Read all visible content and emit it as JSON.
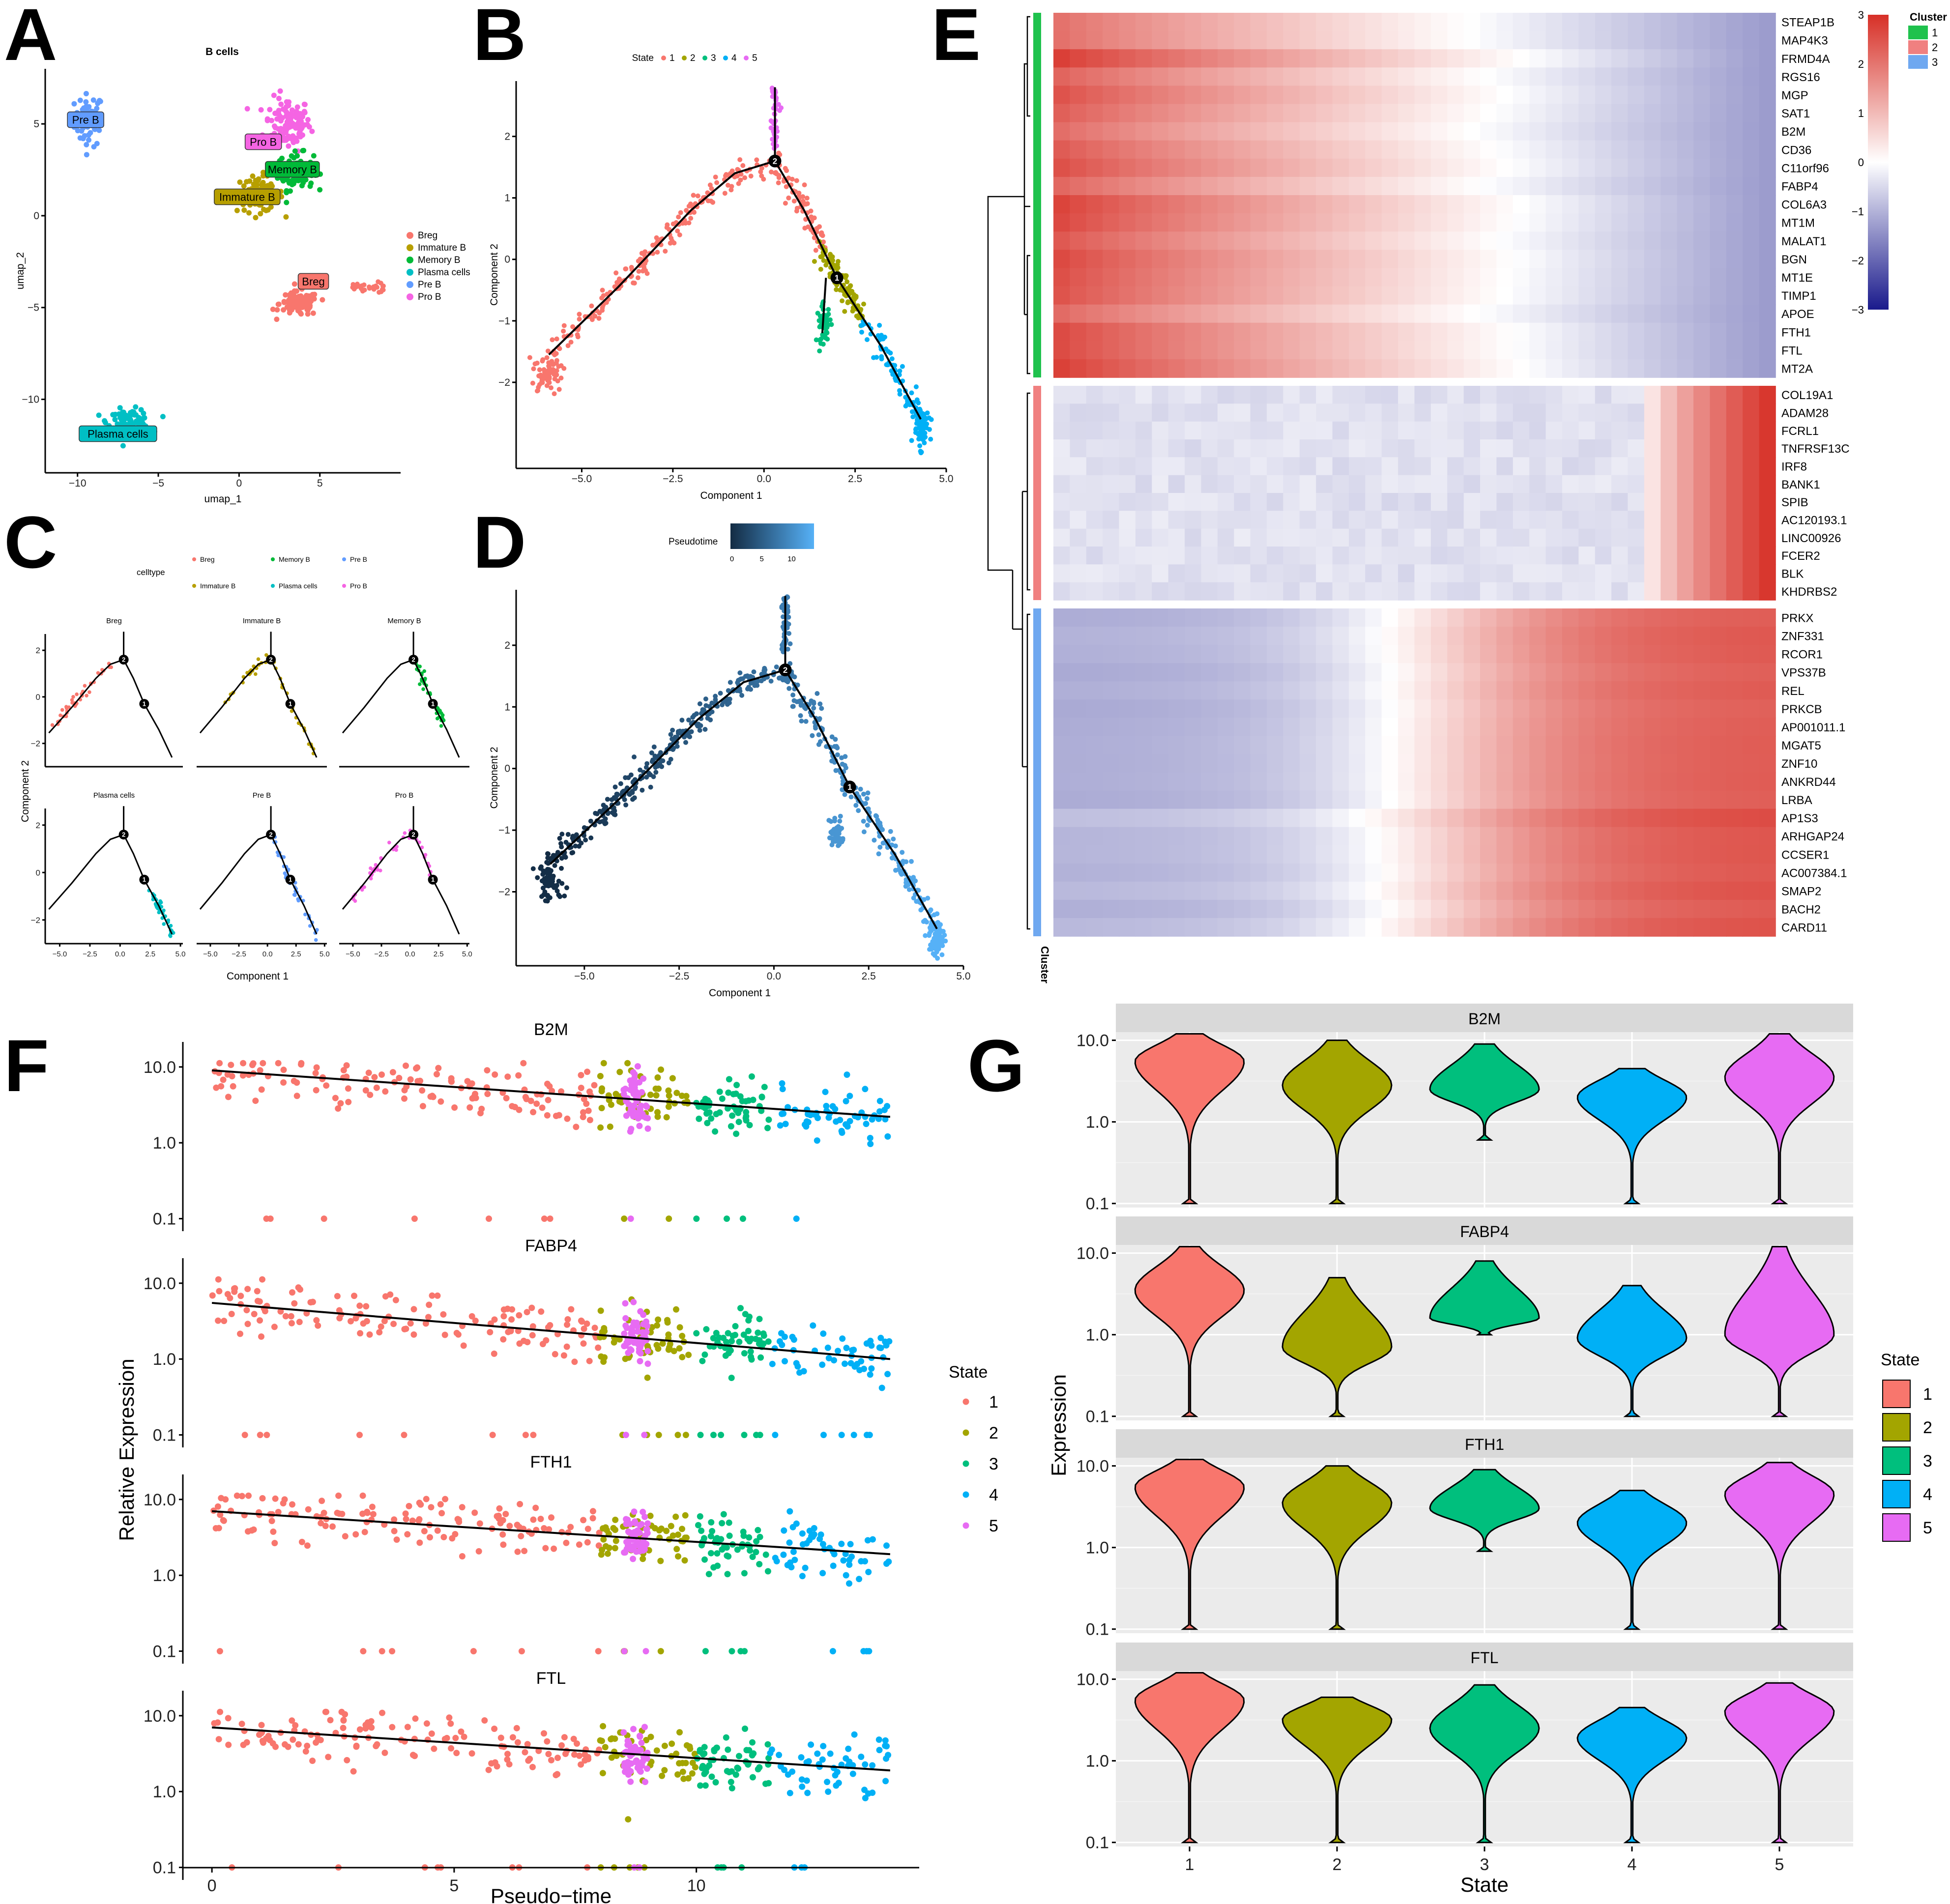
{
  "panel_labels": [
    "A",
    "B",
    "C",
    "D",
    "E",
    "F",
    "G"
  ],
  "palette": {
    "state_1": "#F8766D",
    "state_2": "#A3A500",
    "state_3": "#00BF7D",
    "state_4": "#00B0F6",
    "state_5": "#E76BF3",
    "breg": "#F8766D",
    "immature_b": "#B79F00",
    "memory_b": "#00BA38",
    "plasma_cells": "#00BFC4",
    "pre_b": "#619CFF",
    "pro_b": "#F564E3",
    "heat_high": "#D73027",
    "heat_mid": "#FFFFFF",
    "heat_low": "#1A1A8C",
    "cluster_1": "#1FC24D",
    "cluster_2": "#F08080",
    "cluster_3": "#6FA8F0"
  },
  "chart_data": [
    {
      "id": "A",
      "type": "scatter",
      "title": "B cells",
      "xlabel": "umap_1",
      "ylabel": "umap_2",
      "xlim": [
        -12,
        10
      ],
      "ylim": [
        -14,
        8
      ],
      "xticks": [
        -10,
        -5,
        0,
        5
      ],
      "yticks": [
        -10,
        -5,
        0,
        5
      ],
      "legend": [
        "Breg",
        "Immature B",
        "Memory B",
        "Plasma cells",
        "Pre B",
        "Pro B"
      ],
      "clusters": [
        {
          "name": "Pre B",
          "center": [
            -9.3,
            5.2
          ],
          "spread": [
            0.8,
            1.3
          ],
          "n": 60
        },
        {
          "name": "Pro B",
          "center": [
            3.0,
            5.0
          ],
          "spread": [
            1.3,
            1.3
          ],
          "n": 120
        },
        {
          "name": "Memory B",
          "center": [
            3.5,
            2.4
          ],
          "spread": [
            1.0,
            0.9
          ],
          "n": 90
        },
        {
          "name": "Immature B",
          "center": [
            1.3,
            1.2
          ],
          "spread": [
            1.3,
            0.9
          ],
          "n": 80
        },
        {
          "name": "Breg",
          "center": [
            3.7,
            -4.8
          ],
          "spread": [
            1.1,
            0.6
          ],
          "n": 110
        },
        {
          "name": "Plasma cells",
          "center": [
            -6.8,
            -11.2
          ],
          "spread": [
            1.2,
            0.6
          ],
          "n": 90
        }
      ],
      "labels": [
        {
          "name": "Pre B",
          "at": [
            -9.5,
            5.2
          ]
        },
        {
          "name": "Pro B",
          "at": [
            1.5,
            4.0
          ]
        },
        {
          "name": "Memory B",
          "at": [
            3.3,
            2.5
          ]
        },
        {
          "name": "Immature B",
          "at": [
            0.5,
            1.0
          ]
        },
        {
          "name": "Breg",
          "at": [
            4.6,
            -3.6
          ]
        },
        {
          "name": "Plasma cells",
          "at": [
            -7.5,
            -11.9
          ]
        }
      ]
    },
    {
      "id": "B",
      "type": "scatter",
      "title": "State",
      "xlabel": "Component 1",
      "ylabel": "Component 2",
      "xlim": [
        -6.8,
        5.0
      ],
      "ylim": [
        -3.4,
        2.9
      ],
      "xticks": [
        -5.0,
        -2.5,
        0.0,
        2.5,
        5.0
      ],
      "yticks": [
        -2,
        -1,
        0,
        1,
        2
      ],
      "legend": [
        "1",
        "2",
        "3",
        "4",
        "5"
      ],
      "trajectory": [
        [
          -5.9,
          -1.55
        ],
        [
          -4.0,
          -0.45
        ],
        [
          -2.0,
          0.8
        ],
        [
          -0.8,
          1.4
        ],
        [
          0.3,
          1.6
        ],
        [
          1.1,
          0.8
        ],
        [
          2.0,
          -0.3
        ],
        [
          3.2,
          -1.4
        ],
        [
          4.3,
          -2.6
        ]
      ],
      "branch_5": [
        [
          0.3,
          1.6
        ],
        [
          0.3,
          2.8
        ]
      ],
      "branch_3": [
        [
          1.7,
          -0.3
        ],
        [
          1.6,
          -1.2
        ]
      ],
      "nodes": [
        {
          "label": "2",
          "at": [
            0.3,
            1.6
          ]
        },
        {
          "label": "1",
          "at": [
            2.0,
            -0.3
          ]
        }
      ]
    },
    {
      "id": "C",
      "type": "scatter",
      "legend_title": "celltype",
      "legend": [
        "Breg",
        "Memory B",
        "Pre B",
        "Immature B",
        "Plasma cells",
        "Pro B"
      ],
      "facets": [
        "Breg",
        "Immature B",
        "Memory B",
        "Plasma cells",
        "Pre B",
        "Pro B"
      ],
      "xlabel": "Component 1",
      "ylabel": "Component 2",
      "xticks": [
        -5.0,
        -2.5,
        0.0,
        2.5,
        5.0
      ],
      "yticks": [
        -2,
        0,
        2
      ]
    },
    {
      "id": "D",
      "type": "scatter",
      "legend_title": "Pseudotime",
      "legend_ticks": [
        0,
        5,
        10
      ],
      "xlabel": "Component 1",
      "ylabel": "Component 2",
      "xticks": [
        -5.0,
        -2.5,
        0.0,
        2.5,
        5.0
      ],
      "yticks": [
        -2,
        -1,
        0,
        1,
        2
      ]
    },
    {
      "id": "E",
      "type": "heatmap",
      "legend_ticks": [
        3,
        2,
        1,
        0,
        -1,
        -2,
        -3
      ],
      "cluster_legend_title": "Cluster",
      "cluster_legend": [
        "1",
        "2",
        "3"
      ],
      "annotation_label": "Cluster",
      "genes": [
        {
          "name": "STEAP1B",
          "cluster": 1
        },
        {
          "name": "MAP4K3",
          "cluster": 1
        },
        {
          "name": "FRMD4A",
          "cluster": 1
        },
        {
          "name": "RGS16",
          "cluster": 1
        },
        {
          "name": "MGP",
          "cluster": 1
        },
        {
          "name": "SAT1",
          "cluster": 1
        },
        {
          "name": "B2M",
          "cluster": 1
        },
        {
          "name": "CD36",
          "cluster": 1
        },
        {
          "name": "C11orf96",
          "cluster": 1
        },
        {
          "name": "FABP4",
          "cluster": 1
        },
        {
          "name": "COL6A3",
          "cluster": 1
        },
        {
          "name": "MT1M",
          "cluster": 1
        },
        {
          "name": "MALAT1",
          "cluster": 1
        },
        {
          "name": "BGN",
          "cluster": 1
        },
        {
          "name": "MT1E",
          "cluster": 1
        },
        {
          "name": "TIMP1",
          "cluster": 1
        },
        {
          "name": "APOE",
          "cluster": 1
        },
        {
          "name": "FTH1",
          "cluster": 1
        },
        {
          "name": "FTL",
          "cluster": 1
        },
        {
          "name": "MT2A",
          "cluster": 1
        },
        {
          "name": "COL19A1",
          "cluster": 2
        },
        {
          "name": "ADAM28",
          "cluster": 2
        },
        {
          "name": "FCRL1",
          "cluster": 2
        },
        {
          "name": "TNFRSF13C",
          "cluster": 2
        },
        {
          "name": "IRF8",
          "cluster": 2
        },
        {
          "name": "BANK1",
          "cluster": 2
        },
        {
          "name": "SPIB",
          "cluster": 2
        },
        {
          "name": "AC120193.1",
          "cluster": 2
        },
        {
          "name": "LINC00926",
          "cluster": 2
        },
        {
          "name": "FCER2",
          "cluster": 2
        },
        {
          "name": "BLK",
          "cluster": 2
        },
        {
          "name": "KHDRBS2",
          "cluster": 2
        },
        {
          "name": "PRKX",
          "cluster": 3
        },
        {
          "name": "ZNF331",
          "cluster": 3
        },
        {
          "name": "RCOR1",
          "cluster": 3
        },
        {
          "name": "VPS37B",
          "cluster": 3
        },
        {
          "name": "REL",
          "cluster": 3
        },
        {
          "name": "PRKCB",
          "cluster": 3
        },
        {
          "name": "AP001011.1",
          "cluster": 3
        },
        {
          "name": "MGAT5",
          "cluster": 3
        },
        {
          "name": "ZNF10",
          "cluster": 3
        },
        {
          "name": "ANKRD44",
          "cluster": 3
        },
        {
          "name": "LRBA",
          "cluster": 3
        },
        {
          "name": "AP1S3",
          "cluster": 3
        },
        {
          "name": "ARHGAP24",
          "cluster": 3
        },
        {
          "name": "CCSER1",
          "cluster": 3
        },
        {
          "name": "AC007384.1",
          "cluster": 3
        },
        {
          "name": "SMAP2",
          "cluster": 3
        },
        {
          "name": "BACH2",
          "cluster": 3
        },
        {
          "name": "CARD11",
          "cluster": 3
        }
      ],
      "profiles": {
        "cluster_1": {
          "start": 2.4,
          "end": -1.3
        },
        "cluster_2": {
          "start": -0.4,
          "end": 2.9
        },
        "cluster_3": {
          "start": -1.0,
          "end": 2.5
        }
      }
    },
    {
      "id": "F",
      "type": "scatter",
      "xlabel": "Pseudo−time",
      "ylabel": "Relative Expression",
      "legend_title": "State",
      "legend": [
        "1",
        "2",
        "3",
        "4",
        "5"
      ],
      "xlim": [
        -0.6,
        14.6
      ],
      "xticks": [
        0,
        5,
        10
      ],
      "yticks": [
        "0.1",
        "1.0",
        "10.0"
      ],
      "state_pseudotime_ranges": [
        [
          0,
          8
        ],
        [
          8,
          10
        ],
        [
          10,
          11.5
        ],
        [
          11.5,
          14
        ],
        [
          8.5,
          9
        ]
      ],
      "facets": [
        {
          "gene": "B2M",
          "trend_start": 9.0,
          "trend_end": 2.2
        },
        {
          "gene": "FABP4",
          "trend_start": 5.5,
          "trend_end": 1.0
        },
        {
          "gene": "FTH1",
          "trend_start": 7.0,
          "trend_end": 1.9
        },
        {
          "gene": "FTL",
          "trend_start": 7.0,
          "trend_end": 1.9
        }
      ]
    },
    {
      "id": "G",
      "type": "violin",
      "xlabel": "State",
      "ylabel": "Expression",
      "legend_title": "State",
      "categories": [
        "1",
        "2",
        "3",
        "4",
        "5"
      ],
      "yticks": [
        "0.1",
        "1.0",
        "10.0"
      ],
      "facets": [
        {
          "gene": "B2M",
          "median": [
            5.5,
            2.8,
            2.5,
            2.0,
            3.5
          ],
          "max": [
            12,
            10,
            9,
            4.5,
            12
          ],
          "min": [
            0.1,
            0.1,
            0.6,
            0.1,
            0.1
          ]
        },
        {
          "gene": "FABP4",
          "median": [
            3.5,
            0.7,
            1.6,
            0.9,
            1.0
          ],
          "max": [
            12,
            5,
            8,
            4,
            12
          ],
          "min": [
            0.1,
            0.1,
            1.0,
            0.1,
            0.1
          ]
        },
        {
          "gene": "FTH1",
          "median": [
            5.5,
            3.5,
            3.0,
            2.0,
            4.5
          ],
          "max": [
            12,
            10,
            9,
            5,
            11
          ],
          "min": [
            0.1,
            0.1,
            0.9,
            0.1,
            0.1
          ]
        },
        {
          "gene": "FTL",
          "median": [
            5.5,
            3.2,
            2.5,
            1.9,
            4.0
          ],
          "max": [
            12,
            6,
            8.5,
            4.5,
            9
          ],
          "min": [
            0.1,
            0.1,
            0.1,
            0.1,
            0.1
          ]
        }
      ]
    }
  ]
}
